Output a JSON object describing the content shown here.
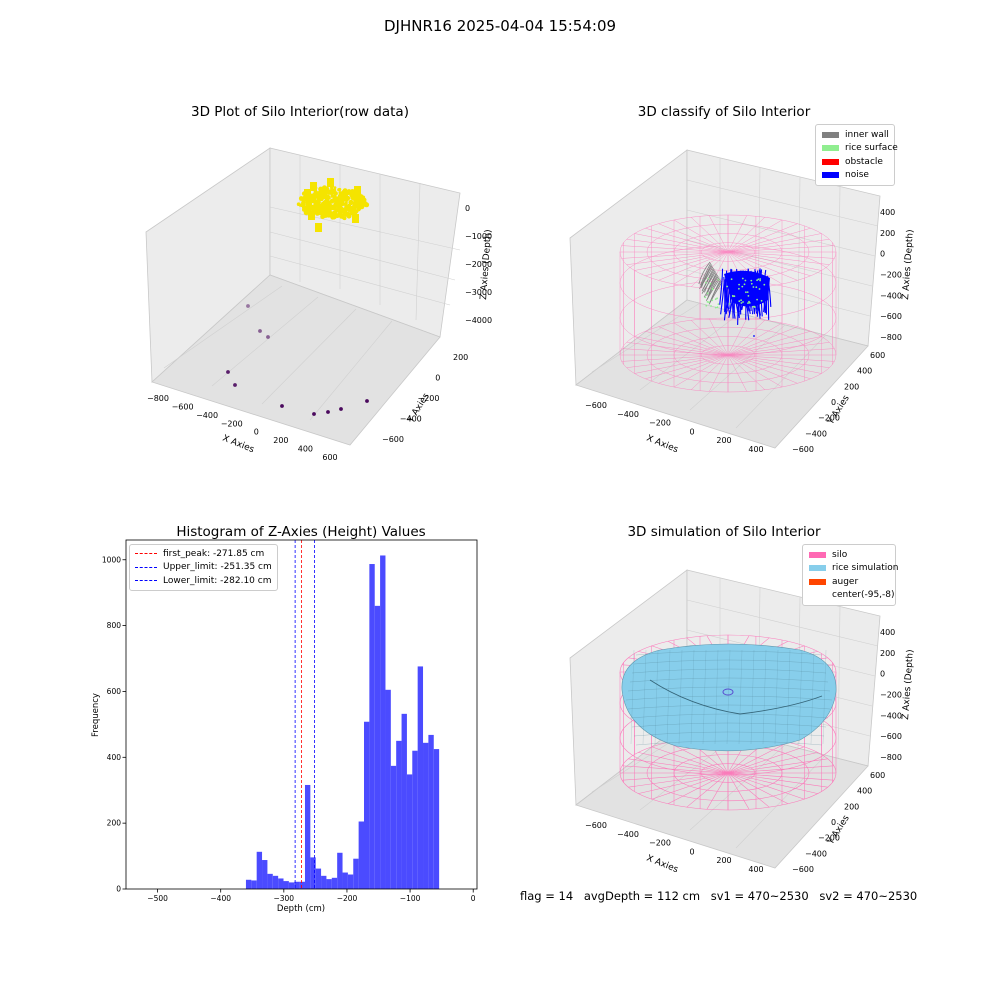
{
  "suptitle": "DJHNR16 2025-04-04 15:54:09",
  "footer": {
    "flag": "flag = 14",
    "avg_depth": "avgDepth = 112 cm",
    "sv1": "sv1 = 470~2530",
    "sv2": "sv2 = 470~2530"
  },
  "colors": {
    "inner_wall": "#808080",
    "rice_surface": "#90ee90",
    "obstacle": "#ff0000",
    "noise": "#0000ff",
    "silo": "#ff69b4",
    "rice_simulation": "#87ceeb",
    "auger": "#ff4500",
    "raw_points": "#f5e400",
    "far_points": "#4b0a5e",
    "hist_bar": "#4b4bff"
  },
  "chart_data": [
    {
      "type": "scatter",
      "title": "3D Plot of Silo Interior(row data)",
      "xlabel": "X Axies",
      "ylabel": "Y Axies",
      "zlabel": "Z Axies (Depth)",
      "xticks": [
        "−800",
        "−600",
        "−400",
        "−200",
        "0",
        "200",
        "400",
        "600"
      ],
      "yticks": [
        "−600",
        "−400",
        "−200",
        "0",
        "200"
      ],
      "zticks": [
        "−4000",
        "−3000",
        "−2000",
        "−1000",
        "0"
      ]
    },
    {
      "type": "scatter",
      "title": "3D classify of Silo Interior",
      "xlabel": "X Axies",
      "ylabel": "Y Axies",
      "zlabel": "Z Axies (Depth)",
      "xticks": [
        "−600",
        "−400",
        "−200",
        "0",
        "200",
        "400"
      ],
      "yticks": [
        "−600",
        "−400",
        "−200",
        "0",
        "200",
        "400",
        "600"
      ],
      "zticks": [
        "−800",
        "−600",
        "−400",
        "−200",
        "0",
        "200",
        "400"
      ],
      "legend": [
        "inner wall",
        "rice surface",
        "obstacle",
        "noise"
      ],
      "legend_position": "top-right"
    },
    {
      "type": "bar",
      "title": "Histogram of Z-Axies (Height) Values",
      "xlabel": "Depth (cm)",
      "ylabel": "Frequency",
      "xlim": [
        -550,
        6
      ],
      "ylim": [
        0,
        1060
      ],
      "xticks": [
        -500,
        -400,
        -300,
        -200,
        -100,
        0
      ],
      "xtick_labels": [
        "−500",
        "−400",
        "−300",
        "−200",
        "−100",
        "0"
      ],
      "yticks": [
        0,
        200,
        400,
        600,
        800,
        1000
      ],
      "bin_width": 8.5,
      "bins": [
        {
          "x": -360,
          "y": 28
        },
        {
          "x": -351.5,
          "y": 26
        },
        {
          "x": -343,
          "y": 113
        },
        {
          "x": -334.5,
          "y": 88
        },
        {
          "x": -326,
          "y": 46
        },
        {
          "x": -317.5,
          "y": 40
        },
        {
          "x": -309,
          "y": 32
        },
        {
          "x": -300.5,
          "y": 24
        },
        {
          "x": -292,
          "y": 20
        },
        {
          "x": -283.5,
          "y": 22
        },
        {
          "x": -275,
          "y": 22
        },
        {
          "x": -266.5,
          "y": 316
        },
        {
          "x": -258,
          "y": 96
        },
        {
          "x": -249.5,
          "y": 62
        },
        {
          "x": -241,
          "y": 40
        },
        {
          "x": -232.5,
          "y": 30
        },
        {
          "x": -224,
          "y": 34
        },
        {
          "x": -215.5,
          "y": 110
        },
        {
          "x": -207,
          "y": 50
        },
        {
          "x": -198.5,
          "y": 44
        },
        {
          "x": -190,
          "y": 92
        },
        {
          "x": -181.5,
          "y": 205
        },
        {
          "x": -173,
          "y": 508
        },
        {
          "x": -164.5,
          "y": 987
        },
        {
          "x": -156,
          "y": 860
        },
        {
          "x": -147.5,
          "y": 1013
        },
        {
          "x": -139,
          "y": 605
        },
        {
          "x": -130.5,
          "y": 374
        },
        {
          "x": -122,
          "y": 450
        },
        {
          "x": -113.5,
          "y": 532
        },
        {
          "x": -105,
          "y": 348
        },
        {
          "x": -96.5,
          "y": 420
        },
        {
          "x": -88,
          "y": 676
        },
        {
          "x": -79.5,
          "y": 444
        },
        {
          "x": -71,
          "y": 468
        },
        {
          "x": -62.5,
          "y": 425
        }
      ],
      "vlines": [
        {
          "label": "first_peak: -271.85 cm",
          "x": -271.85,
          "color": "#ff0000"
        },
        {
          "label": "Upper_limit: -251.35 cm",
          "x": -251.35,
          "color": "#0000ff"
        },
        {
          "label": "Lower_limit: -282.10 cm",
          "x": -282.1,
          "color": "#0000ff"
        }
      ],
      "legend_position": "upper-left"
    },
    {
      "type": "area",
      "title": "3D simulation of Silo Interior",
      "xlabel": "X Axies",
      "ylabel": "Y Axies",
      "zlabel": "Z Axies (Depth)",
      "xticks": [
        "−600",
        "−400",
        "−200",
        "0",
        "200",
        "400"
      ],
      "yticks": [
        "−600",
        "−400",
        "−200",
        "0",
        "200",
        "400",
        "600"
      ],
      "zticks": [
        "−800",
        "−600",
        "−400",
        "−200",
        "0",
        "200",
        "400"
      ],
      "legend": [
        "silo",
        "rice simulation",
        "auger",
        "center(-95,-8)"
      ],
      "legend_position": "top-right"
    }
  ]
}
